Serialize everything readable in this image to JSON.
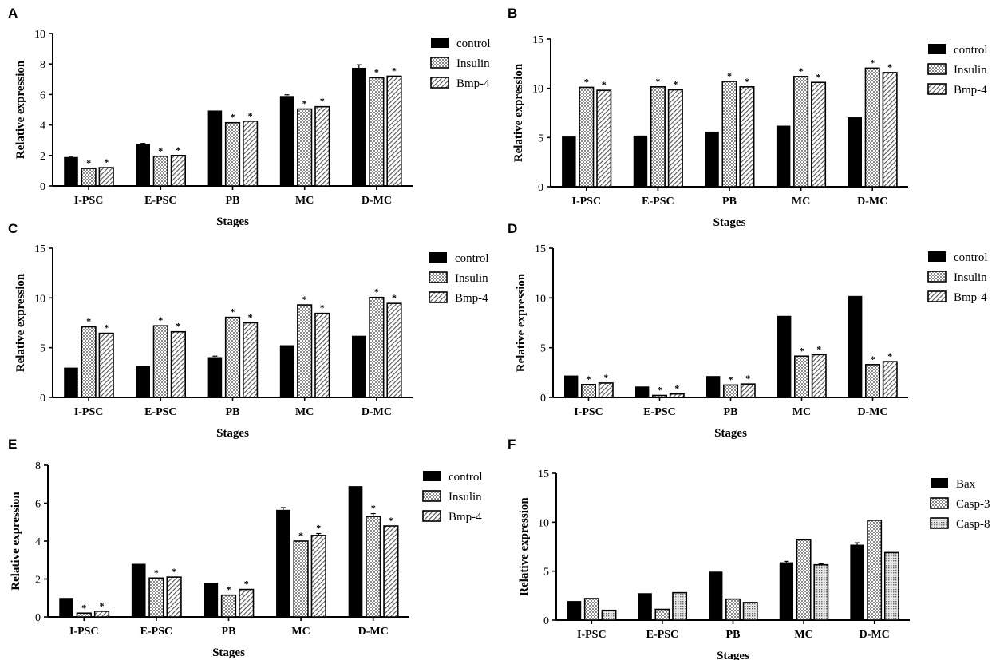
{
  "colors": {
    "control": "#000000",
    "axis": "#000000",
    "background": "#ffffff"
  },
  "chart_data": [
    {
      "panel": "A",
      "type": "bar",
      "categories": [
        "I-PSC",
        "E-PSC",
        "PB",
        "MC",
        "D-MC"
      ],
      "xlabel": "Stages",
      "ylabel": "Relative expression",
      "ylim": [
        0,
        10
      ],
      "yticks": [
        "0",
        "2",
        "4",
        "6",
        "8",
        "10"
      ],
      "legend_position": "top-right",
      "series": [
        {
          "name": "control",
          "pattern": "solid",
          "values": [
            1.9,
            2.75,
            4.95,
            5.9,
            7.75
          ],
          "errors": [
            0.04,
            0.04,
            0.0,
            0.08,
            0.2
          ],
          "stars": [
            false,
            false,
            false,
            false,
            false
          ]
        },
        {
          "name": "Insulin",
          "pattern": "check",
          "values": [
            1.15,
            1.95,
            4.15,
            5.05,
            7.1
          ],
          "errors": [
            0,
            0,
            0,
            0,
            0
          ],
          "stars": [
            true,
            true,
            true,
            true,
            true
          ]
        },
        {
          "name": "Bmp-4",
          "pattern": "hatch",
          "values": [
            1.2,
            2.0,
            4.25,
            5.2,
            7.2
          ],
          "errors": [
            0,
            0,
            0,
            0,
            0
          ],
          "stars": [
            true,
            true,
            true,
            true,
            true
          ]
        }
      ]
    },
    {
      "panel": "B",
      "type": "bar",
      "categories": [
        "I-PSC",
        "E-PSC",
        "PB",
        "MC",
        "D-MC"
      ],
      "xlabel": "Stages",
      "ylabel": "Relative expression",
      "ylim": [
        0,
        15
      ],
      "yticks": [
        "0",
        "5",
        "10",
        "15"
      ],
      "legend_position": "top-right",
      "series": [
        {
          "name": "control",
          "pattern": "solid",
          "values": [
            5.1,
            5.2,
            5.6,
            6.2,
            7.05
          ],
          "errors": [
            0,
            0,
            0,
            0,
            0
          ],
          "stars": [
            false,
            false,
            false,
            false,
            false
          ]
        },
        {
          "name": "Insulin",
          "pattern": "check",
          "values": [
            10.1,
            10.15,
            10.7,
            11.2,
            12.05
          ],
          "errors": [
            0,
            0,
            0,
            0,
            0
          ],
          "stars": [
            true,
            true,
            true,
            true,
            true
          ]
        },
        {
          "name": "Bmp-4",
          "pattern": "hatch",
          "values": [
            9.8,
            9.85,
            10.15,
            10.6,
            11.6
          ],
          "errors": [
            0,
            0,
            0,
            0,
            0
          ],
          "stars": [
            true,
            true,
            true,
            true,
            true
          ]
        }
      ]
    },
    {
      "panel": "C",
      "type": "bar",
      "categories": [
        "I-PSC",
        "E-PSC",
        "PB",
        "MC",
        "D-MC"
      ],
      "xlabel": "Stages",
      "ylabel": "Relative expression",
      "ylim": [
        0,
        15
      ],
      "yticks": [
        "0",
        "5",
        "10",
        "15"
      ],
      "legend_position": "top-right",
      "series": [
        {
          "name": "control",
          "pattern": "solid",
          "values": [
            3.0,
            3.15,
            4.05,
            5.25,
            6.2
          ],
          "errors": [
            0,
            0,
            0.1,
            0,
            0
          ],
          "stars": [
            false,
            false,
            false,
            false,
            false
          ]
        },
        {
          "name": "Insulin",
          "pattern": "check",
          "values": [
            7.1,
            7.2,
            8.05,
            9.3,
            10.05
          ],
          "errors": [
            0,
            0,
            0,
            0,
            0
          ],
          "stars": [
            true,
            true,
            true,
            true,
            true
          ]
        },
        {
          "name": "Bmp-4",
          "pattern": "hatch",
          "values": [
            6.45,
            6.6,
            7.5,
            8.45,
            9.45
          ],
          "errors": [
            0,
            0,
            0,
            0,
            0
          ],
          "stars": [
            true,
            true,
            true,
            true,
            true
          ]
        }
      ]
    },
    {
      "panel": "D",
      "type": "bar",
      "categories": [
        "I-PSC",
        "E-PSC",
        "PB",
        "MC",
        "D-MC"
      ],
      "xlabel": "Stages",
      "ylabel": "Relative expression",
      "ylim": [
        0,
        15
      ],
      "yticks": [
        "0",
        "5",
        "10",
        "15"
      ],
      "legend_position": "top-right",
      "series": [
        {
          "name": "control",
          "pattern": "solid",
          "values": [
            2.2,
            1.1,
            2.15,
            8.2,
            10.2
          ],
          "errors": [
            0,
            0,
            0,
            0,
            0
          ],
          "stars": [
            false,
            false,
            false,
            false,
            false
          ]
        },
        {
          "name": "Insulin",
          "pattern": "check",
          "values": [
            1.3,
            0.2,
            1.25,
            4.15,
            3.3
          ],
          "errors": [
            0,
            0,
            0,
            0,
            0
          ],
          "stars": [
            true,
            true,
            true,
            true,
            true
          ]
        },
        {
          "name": "Bmp-4",
          "pattern": "hatch",
          "values": [
            1.45,
            0.35,
            1.35,
            4.3,
            3.6
          ],
          "errors": [
            0,
            0,
            0,
            0,
            0
          ],
          "stars": [
            true,
            true,
            true,
            true,
            true
          ]
        }
      ]
    },
    {
      "panel": "E",
      "type": "bar",
      "categories": [
        "I-PSC",
        "E-PSC",
        "PB",
        "MC",
        "D-MC"
      ],
      "xlabel": "Stages",
      "ylabel": "Relative expression",
      "ylim": [
        0,
        8
      ],
      "yticks": [
        "0",
        "2",
        "4",
        "6",
        "8"
      ],
      "legend_position": "top-right",
      "series": [
        {
          "name": "control",
          "pattern": "solid",
          "values": [
            1.0,
            2.8,
            1.8,
            5.65,
            6.9
          ],
          "errors": [
            0,
            0,
            0,
            0.12,
            0
          ],
          "stars": [
            false,
            false,
            false,
            false,
            false
          ]
        },
        {
          "name": "Insulin",
          "pattern": "check",
          "values": [
            0.2,
            2.05,
            1.15,
            4.0,
            5.3
          ],
          "errors": [
            0,
            0,
            0,
            0,
            0.15
          ],
          "stars": [
            true,
            true,
            true,
            true,
            true
          ]
        },
        {
          "name": "Bmp-4",
          "pattern": "hatch",
          "values": [
            0.3,
            2.1,
            1.45,
            4.3,
            4.8
          ],
          "errors": [
            0,
            0,
            0,
            0.1,
            0
          ],
          "stars": [
            true,
            true,
            true,
            true,
            true
          ]
        }
      ]
    },
    {
      "panel": "F",
      "type": "bar",
      "categories": [
        "I-PSC",
        "E-PSC",
        "PB",
        "MC",
        "D-MC"
      ],
      "xlabel": "Stages",
      "ylabel": "Relative expression",
      "ylim": [
        0,
        15
      ],
      "yticks": [
        "0",
        "5",
        "10",
        "15"
      ],
      "legend_position": "top-right",
      "series": [
        {
          "name": "Bax",
          "pattern": "solid",
          "values": [
            1.95,
            2.75,
            4.95,
            5.9,
            7.7
          ],
          "errors": [
            0,
            0,
            0,
            0.1,
            0.2
          ],
          "stars": [
            false,
            false,
            false,
            false,
            false
          ]
        },
        {
          "name": "Casp-3",
          "pattern": "check",
          "values": [
            2.2,
            1.1,
            2.15,
            8.2,
            10.2
          ],
          "errors": [
            0,
            0,
            0,
            0,
            0
          ],
          "stars": [
            false,
            false,
            false,
            false,
            false
          ]
        },
        {
          "name": "Casp-8",
          "pattern": "dots",
          "values": [
            1.0,
            2.8,
            1.8,
            5.65,
            6.9
          ],
          "errors": [
            0,
            0,
            0,
            0.1,
            0
          ],
          "stars": [
            false,
            false,
            false,
            false,
            false
          ]
        }
      ]
    }
  ]
}
